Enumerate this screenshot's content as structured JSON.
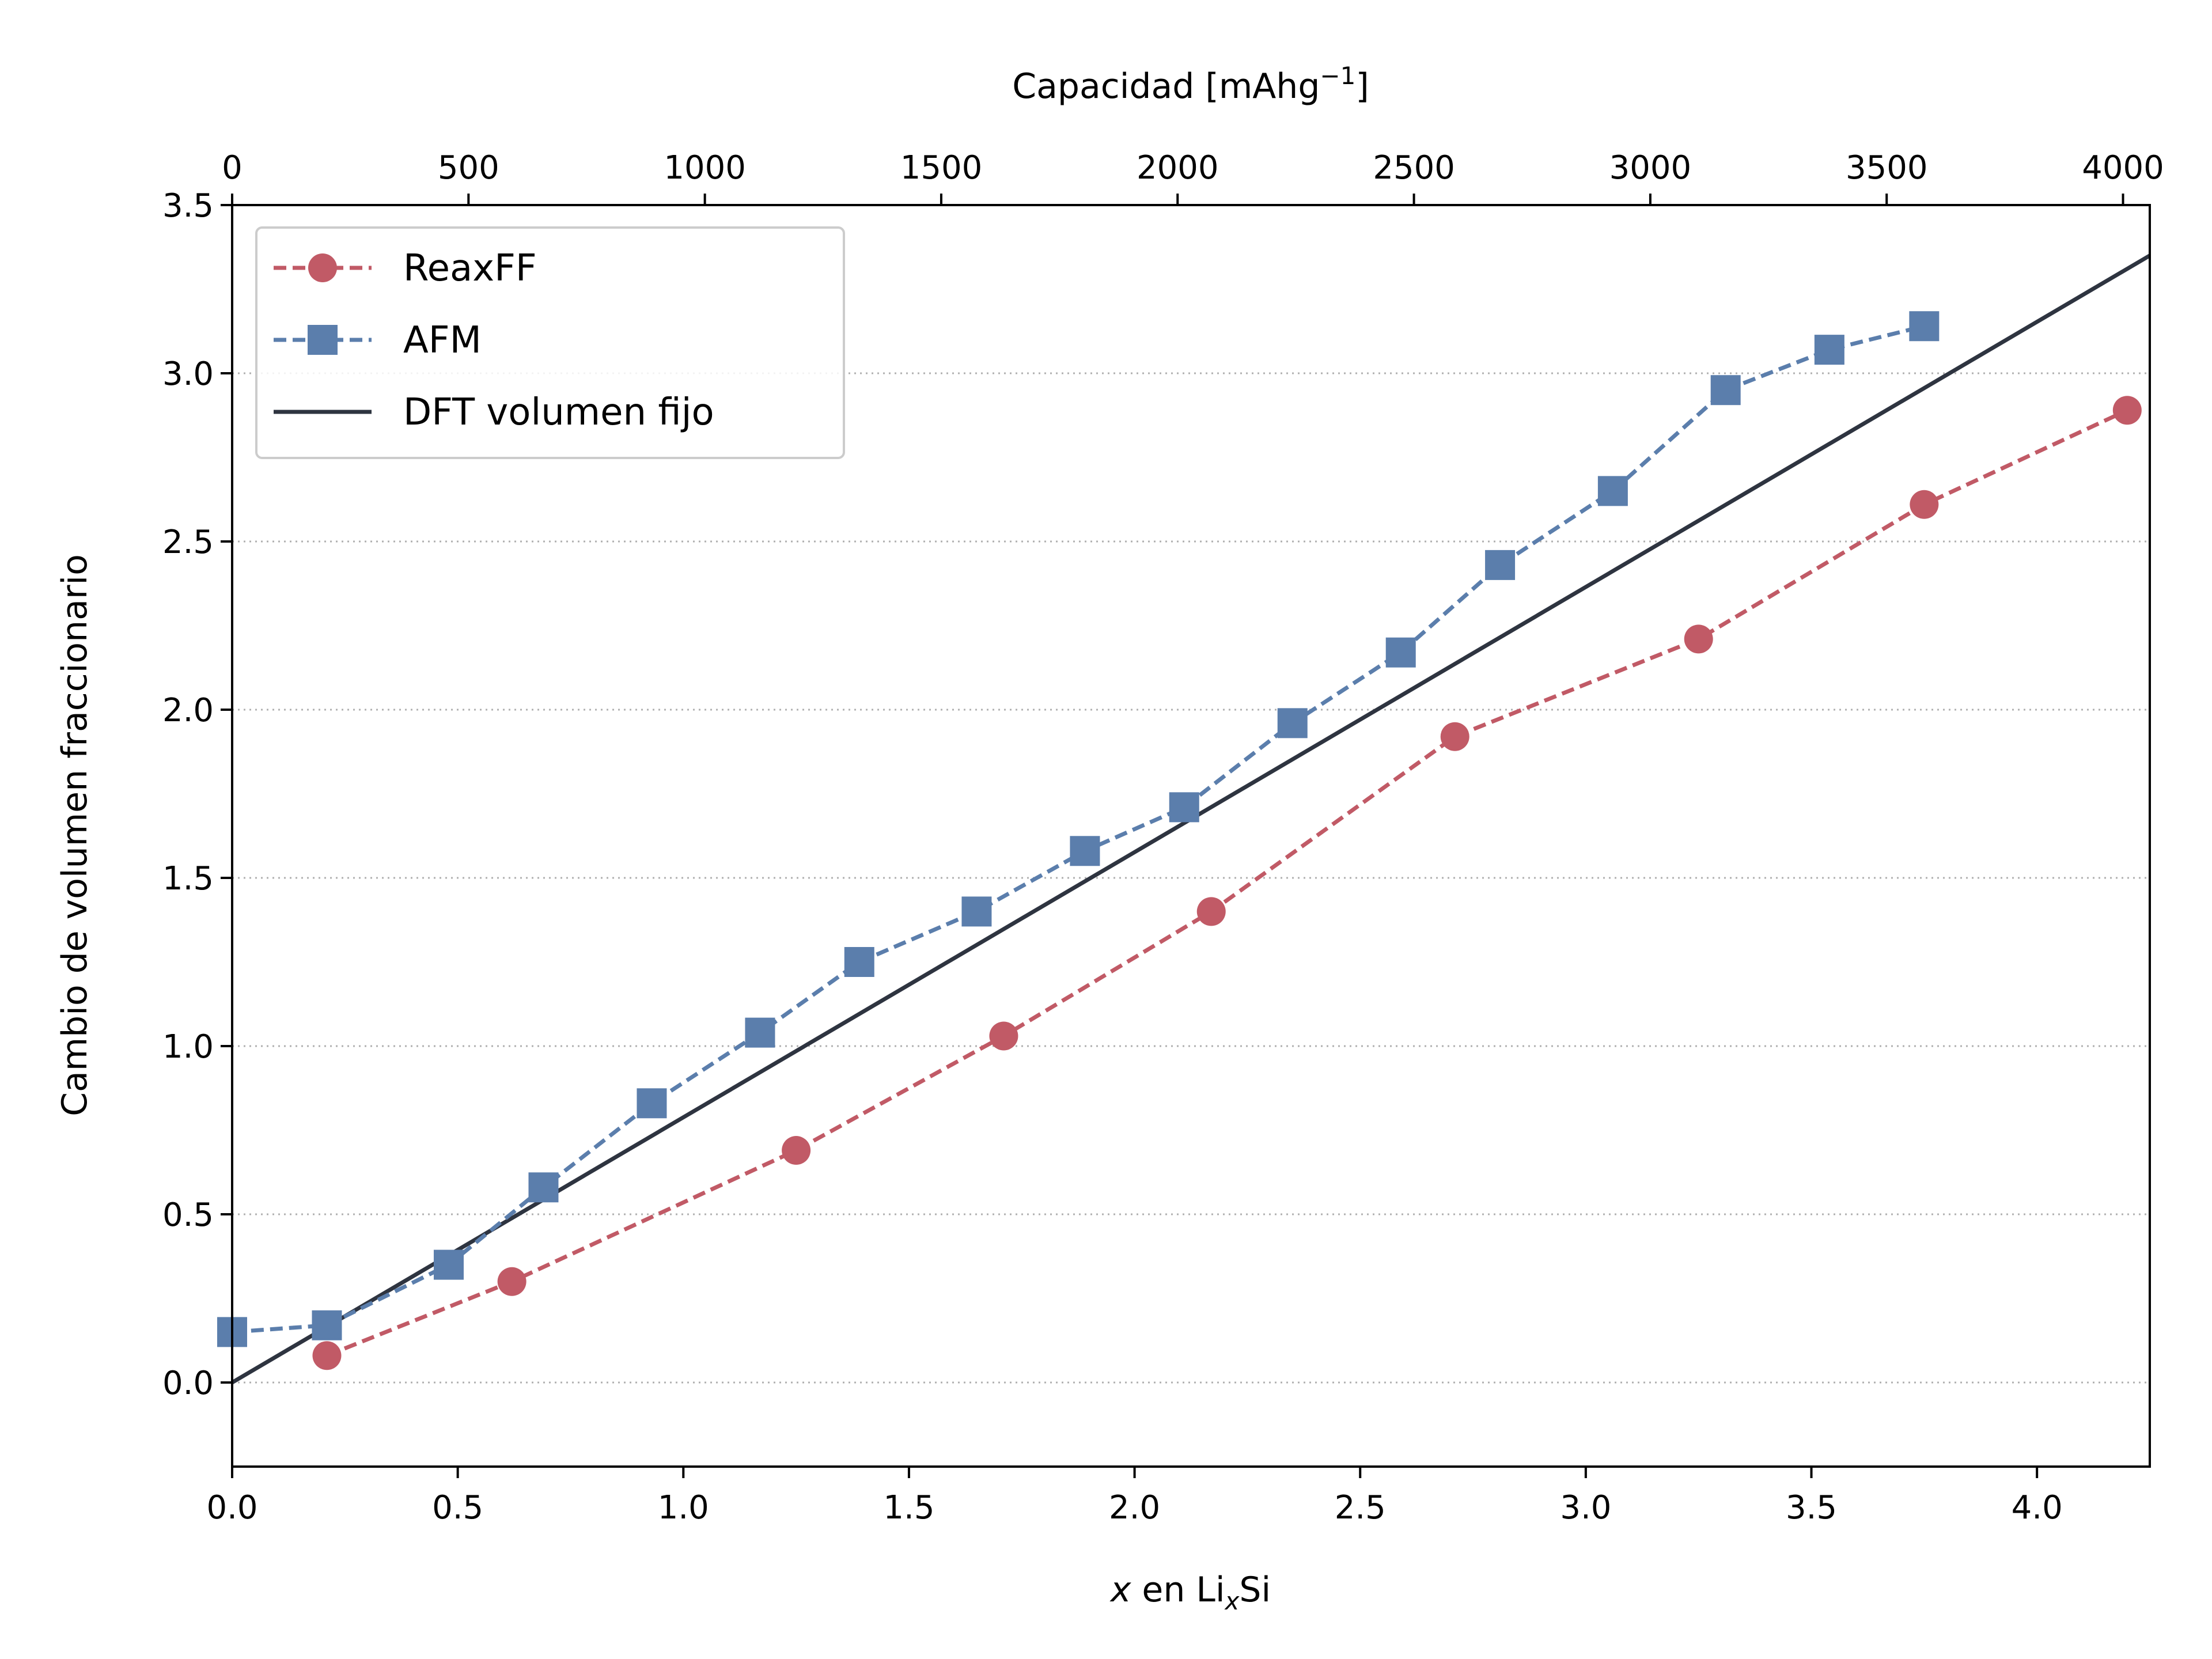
{
  "chart_data": {
    "type": "line",
    "xlabel": {
      "var": "x",
      "mid": " en Li",
      "sub": "x",
      "tail": "Si"
    },
    "ylabel": "Cambio de volumen fraccionario",
    "top_xlabel": {
      "base": "Capacidad [mAhg",
      "sup": "−1",
      "tail": "]"
    },
    "xlim": [
      0.0,
      4.25
    ],
    "ylim": [
      -0.25,
      3.5
    ],
    "x_ticks": [
      "0.0",
      "0.5",
      "1.0",
      "1.5",
      "2.0",
      "2.5",
      "3.0",
      "3.5",
      "4.0"
    ],
    "y_ticks": [
      "0.0",
      "0.5",
      "1.0",
      "1.5",
      "2.0",
      "2.5",
      "3.0",
      "3.5"
    ],
    "top_ticks": [
      "0",
      "500",
      "1000",
      "1500",
      "2000",
      "2500",
      "3000",
      "3500",
      "4000"
    ],
    "top_tick_capacity_per_x": 954.5,
    "grid": {
      "axis": "y",
      "style": "dotted"
    },
    "legend_position": "top-left",
    "series": [
      {
        "name": "ReaxFF",
        "color": "#c15a66",
        "marker": "circle",
        "line": "dashed",
        "x": [
          0.21,
          0.62,
          1.25,
          1.71,
          2.17,
          2.71,
          3.25,
          3.75,
          4.2
        ],
        "y": [
          0.08,
          0.3,
          0.69,
          1.03,
          1.4,
          1.92,
          2.21,
          2.61,
          2.89
        ]
      },
      {
        "name": "AFM",
        "color": "#5b7eac",
        "marker": "square",
        "line": "dashed",
        "x": [
          0.0,
          0.21,
          0.48,
          0.69,
          0.93,
          1.17,
          1.39,
          1.65,
          1.89,
          2.11,
          2.35,
          2.59,
          2.81,
          3.06,
          3.31,
          3.54,
          3.75
        ],
        "y": [
          0.15,
          0.17,
          0.35,
          0.58,
          0.83,
          1.04,
          1.25,
          1.4,
          1.58,
          1.71,
          1.96,
          2.17,
          2.43,
          2.65,
          2.95,
          3.07,
          3.14
        ]
      },
      {
        "name": "DFT volumen fijo",
        "color": "#2e3440",
        "marker": "none",
        "line": "solid",
        "x": [
          0.0,
          4.25
        ],
        "y": [
          0.0,
          3.35
        ]
      }
    ]
  }
}
